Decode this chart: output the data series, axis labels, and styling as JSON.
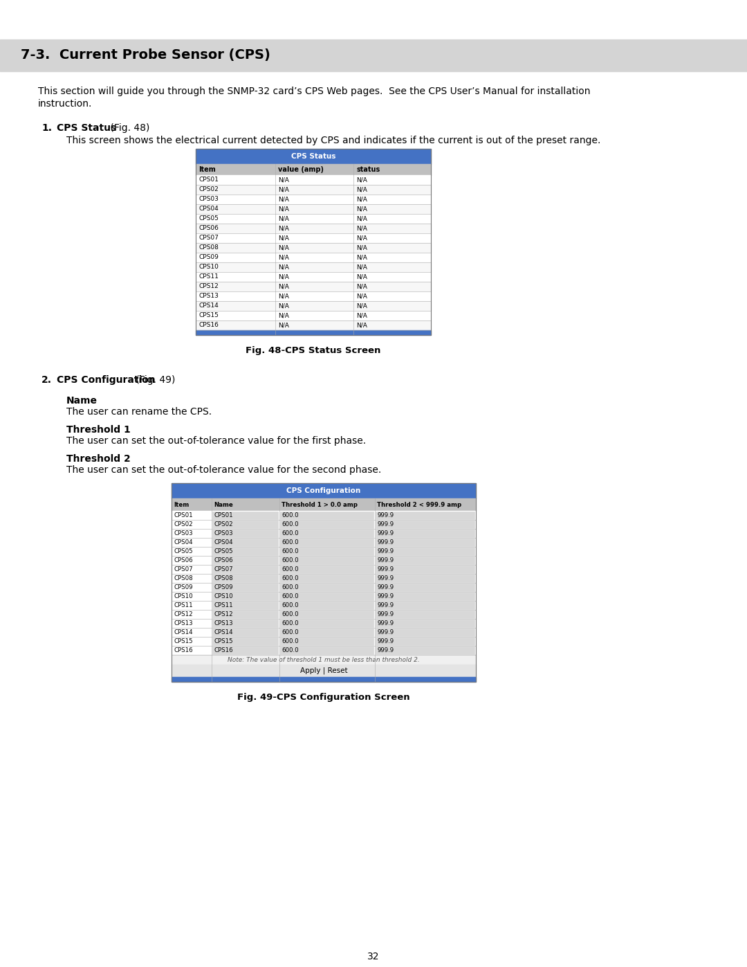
{
  "page_bg": "#ffffff",
  "header_bg": "#d4d4d4",
  "header_text": "7-3.  Current Probe Sensor (CPS)",
  "header_text_color": "#000000",
  "header_font_size": 14,
  "body_font_size": 10,
  "small_font_size": 8.5,
  "intro_line1": "This section will guide you through the SNMP-32 card’s CPS Web pages.  See the CPS User’s Manual for installation",
  "intro_line2": "instruction.",
  "section1_label": "1.",
  "section1_title": "CPS Status",
  "section1_fig": " (Fig. 48)",
  "section1_desc": "This screen shows the electrical current detected by CPS and indicates if the current is out of the preset range.",
  "table1_title": "CPS Status",
  "table1_header": [
    "Item",
    "value (amp)",
    "status"
  ],
  "table1_rows": [
    [
      "CPS01",
      "N/A",
      "N/A"
    ],
    [
      "CPS02",
      "N/A",
      "N/A"
    ],
    [
      "CPS03",
      "N/A",
      "N/A"
    ],
    [
      "CPS04",
      "N/A",
      "N/A"
    ],
    [
      "CPS05",
      "N/A",
      "N/A"
    ],
    [
      "CPS06",
      "N/A",
      "N/A"
    ],
    [
      "CPS07",
      "N/A",
      "N/A"
    ],
    [
      "CPS08",
      "N/A",
      "N/A"
    ],
    [
      "CPS09",
      "N/A",
      "N/A"
    ],
    [
      "CPS10",
      "N/A",
      "N/A"
    ],
    [
      "CPS11",
      "N/A",
      "N/A"
    ],
    [
      "CPS12",
      "N/A",
      "N/A"
    ],
    [
      "CPS13",
      "N/A",
      "N/A"
    ],
    [
      "CPS14",
      "N/A",
      "N/A"
    ],
    [
      "CPS15",
      "N/A",
      "N/A"
    ],
    [
      "CPS16",
      "N/A",
      "N/A"
    ]
  ],
  "fig1_caption": "Fig. 48-CPS Status Screen",
  "section2_label": "2.",
  "section2_title": "CPS Configuration",
  "section2_fig": " (Fig. 49)",
  "sub_name_title": "Name",
  "sub_name_desc": "The user can rename the CPS.",
  "sub_thresh1_title": "Threshold 1",
  "sub_thresh1_desc": "The user can set the out-of-tolerance value for the first phase.",
  "sub_thresh2_title": "Threshold 2",
  "sub_thresh2_desc": "The user can set the out-of-tolerance value for the second phase.",
  "table2_title": "CPS Configuration",
  "table2_header": [
    "Item",
    "Name",
    "Threshold 1 > 0.0 amp",
    "Threshold 2 < 999.9 amp"
  ],
  "table2_rows": [
    [
      "CPS01",
      "CPS01",
      "600.0",
      "999.9"
    ],
    [
      "CPS02",
      "CPS02",
      "600.0",
      "999.9"
    ],
    [
      "CPS03",
      "CPS03",
      "600.0",
      "999.9"
    ],
    [
      "CPS04",
      "CPS04",
      "600.0",
      "999.9"
    ],
    [
      "CPS05",
      "CPS05",
      "600.0",
      "999.9"
    ],
    [
      "CPS06",
      "CPS06",
      "600.0",
      "999.9"
    ],
    [
      "CPS07",
      "CPS07",
      "600.0",
      "999.9"
    ],
    [
      "CPS08",
      "CPS08",
      "600.0",
      "999.9"
    ],
    [
      "CPS09",
      "CPS09",
      "600.0",
      "999.9"
    ],
    [
      "CPS10",
      "CPS10",
      "600.0",
      "999.9"
    ],
    [
      "CPS11",
      "CPS11",
      "600.0",
      "999.9"
    ],
    [
      "CPS12",
      "CPS12",
      "600.0",
      "999.9"
    ],
    [
      "CPS13",
      "CPS13",
      "600.0",
      "999.9"
    ],
    [
      "CPS14",
      "CPS14",
      "600.0",
      "999.9"
    ],
    [
      "CPS15",
      "CPS15",
      "600.0",
      "999.9"
    ],
    [
      "CPS16",
      "CPS16",
      "600.0",
      "999.9"
    ]
  ],
  "table2_note": "Note: The value of threshold 1 must be less than threshold 2.",
  "table2_buttons": "Apply | Reset",
  "fig2_caption": "Fig. 49-CPS Configuration Screen",
  "page_number": "32",
  "table_title_bg": "#4472c4",
  "table_title_color": "#ffffff",
  "table_header_bg": "#bfbfbf",
  "table_header_color": "#000000",
  "table_row_bg": "#ffffff",
  "table_border_color": "#aaaaaa",
  "table_footer_bg": "#4472c4",
  "input_bg": "#d8d8d8",
  "input_border": "#999999",
  "note_bg": "#f0f0f0"
}
